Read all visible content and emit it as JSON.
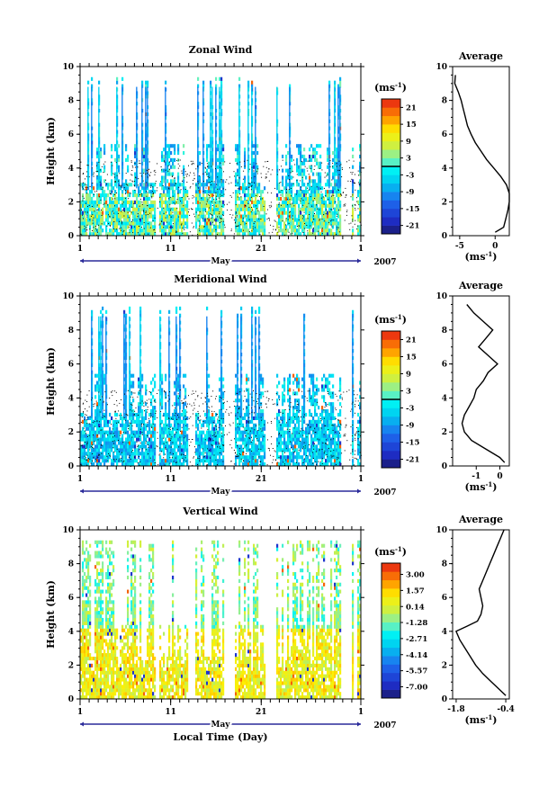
{
  "chart_data": [
    {
      "type": "heatmap",
      "title": "Zonal Wind",
      "ylabel": "Height (km)",
      "xlabel": "",
      "ylim": [
        0,
        10
      ],
      "yticks": [
        0,
        2,
        4,
        6,
        8,
        10
      ],
      "xticks": [
        "1",
        "11",
        "21",
        "1"
      ],
      "month_label": "May",
      "year_label": "2007",
      "unit_label": "(ms-1)",
      "colorbar": {
        "range": [
          -24,
          24
        ],
        "ticks": [
          "21",
          "15",
          "9",
          "3",
          "-3",
          "-9",
          "-15",
          "-21"
        ],
        "tick_values": [
          21,
          15,
          9,
          3,
          -3,
          -9,
          -15,
          -21
        ],
        "zero_line": 0
      },
      "profile": {
        "title": "Average",
        "xlabel": "(ms-1)",
        "xlim": [
          -6,
          2
        ],
        "xticks": [
          "-5",
          "0"
        ],
        "xtick_values": [
          -5,
          0
        ],
        "yticks": [
          0,
          2,
          4,
          6,
          8,
          10
        ],
        "height": [
          0.2,
          0.5,
          1.0,
          1.5,
          2.0,
          2.5,
          3.0,
          3.5,
          4.0,
          4.5,
          5.0,
          5.5,
          6.0,
          6.5,
          7.0,
          7.5,
          8.0,
          8.5,
          9.0,
          9.5
        ],
        "value": [
          0.0,
          1.2,
          1.5,
          1.8,
          2.0,
          2.0,
          1.6,
          0.8,
          -0.2,
          -1.2,
          -2.0,
          -2.8,
          -3.4,
          -3.9,
          -4.2,
          -4.5,
          -4.8,
          -5.2,
          -5.7,
          -5.6
        ]
      }
    },
    {
      "type": "heatmap",
      "title": "Meridional Wind",
      "ylabel": "Height (km)",
      "xlabel": "",
      "ylim": [
        0,
        10
      ],
      "yticks": [
        0,
        2,
        4,
        6,
        8,
        10
      ],
      "xticks": [
        "1",
        "11",
        "21",
        "1"
      ],
      "month_label": "May",
      "year_label": "2007",
      "unit_label": "(ms-1)",
      "colorbar": {
        "range": [
          -24,
          24
        ],
        "ticks": [
          "21",
          "15",
          "9",
          "3",
          "-3",
          "-9",
          "-15",
          "-21"
        ],
        "tick_values": [
          21,
          15,
          9,
          3,
          -3,
          -9,
          -15,
          -21
        ],
        "zero_line": 0
      },
      "profile": {
        "title": "Average",
        "xlabel": "(ms-1)",
        "xlim": [
          -2,
          0.4
        ],
        "xticks": [
          "-1",
          "0"
        ],
        "xtick_values": [
          -1,
          0
        ],
        "yticks": [
          0,
          2,
          4,
          6,
          8,
          10
        ],
        "height": [
          0.2,
          0.5,
          1.0,
          1.5,
          2.0,
          2.5,
          3.0,
          3.5,
          4.0,
          4.5,
          5.0,
          5.5,
          6.0,
          6.5,
          7.0,
          7.5,
          8.0,
          8.5,
          9.0,
          9.5
        ],
        "value": [
          0.2,
          0.0,
          -0.6,
          -1.2,
          -1.5,
          -1.6,
          -1.5,
          -1.3,
          -1.1,
          -1.0,
          -0.7,
          -0.5,
          -0.1,
          -0.5,
          -0.9,
          -0.6,
          -0.3,
          -0.7,
          -1.1,
          -1.4
        ]
      }
    },
    {
      "type": "heatmap",
      "title": "Vertical Wind",
      "ylabel": "Height (km)",
      "xlabel": "Local Time (Day)",
      "ylim": [
        0,
        10
      ],
      "yticks": [
        0,
        2,
        4,
        6,
        8,
        10
      ],
      "xticks": [
        "1",
        "11",
        "21",
        "1"
      ],
      "month_label": "May",
      "year_label": "2007",
      "unit_label": "(ms-1)",
      "colorbar": {
        "range": [
          -8,
          4
        ],
        "ticks": [
          "3.00",
          "1.57",
          "0.14",
          "-1.28",
          "-2.71",
          "-4.14",
          "-5.57",
          "-7.00"
        ],
        "tick_values": [
          3.0,
          1.57,
          0.14,
          -1.28,
          -2.71,
          -4.14,
          -5.57,
          -7.0
        ]
      },
      "profile": {
        "title": "Average",
        "xlabel": "(ms-1)",
        "xlim": [
          -1.9,
          -0.3
        ],
        "xticks": [
          "-1.8",
          "-0.4"
        ],
        "xtick_values": [
          -1.8,
          -0.4
        ],
        "yticks": [
          0,
          2,
          4,
          6,
          8,
          10
        ],
        "height": [
          0.2,
          0.5,
          1.0,
          1.5,
          2.0,
          2.5,
          3.0,
          3.5,
          4.0,
          4.3,
          4.6,
          5.0,
          5.5,
          6.0,
          6.5,
          7.0,
          7.5,
          8.0,
          8.5,
          9.0,
          9.5,
          10.0
        ],
        "value": [
          -0.4,
          -0.55,
          -0.8,
          -1.05,
          -1.25,
          -1.4,
          -1.55,
          -1.7,
          -1.8,
          -1.5,
          -1.2,
          -1.1,
          -1.05,
          -1.1,
          -1.15,
          -1.05,
          -0.95,
          -0.85,
          -0.75,
          -0.65,
          -0.55,
          -0.45
        ]
      }
    }
  ]
}
